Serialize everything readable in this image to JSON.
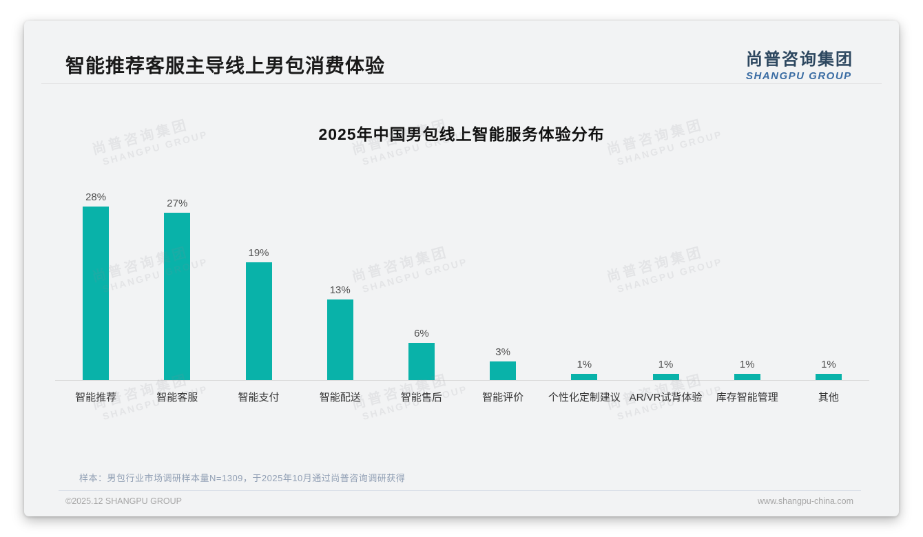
{
  "page": {
    "title": "智能推荐客服主导线上男包消费体验",
    "logo": {
      "cn": "尚普咨询集团",
      "en": "SHANGPU GROUP"
    },
    "note": "样本：男包行业市场调研样本量N=1309，于2025年10月通过尚普咨询调研获得",
    "footer_left": "©2025.12 SHANGPU GROUP",
    "footer_right": "www.shangpu-china.com",
    "watermark": {
      "cn": "尚普咨询集团",
      "en": "SHANGPU GROUP"
    }
  },
  "chart_data": {
    "type": "bar",
    "title": "2025年中国男包线上智能服务体验分布",
    "categories": [
      "智能推荐",
      "智能客服",
      "智能支付",
      "智能配送",
      "智能售后",
      "智能评价",
      "个性化定制建议",
      "AR/VR试背体验",
      "库存智能管理",
      "其他"
    ],
    "values": [
      28,
      27,
      19,
      13,
      6,
      3,
      1,
      1,
      1,
      1
    ],
    "unit": "%",
    "xlabel": "",
    "ylabel": "",
    "ylim": [
      0,
      30
    ],
    "grid": false,
    "legend": false,
    "data_labels": true,
    "bar_color": "#09b2a9"
  }
}
